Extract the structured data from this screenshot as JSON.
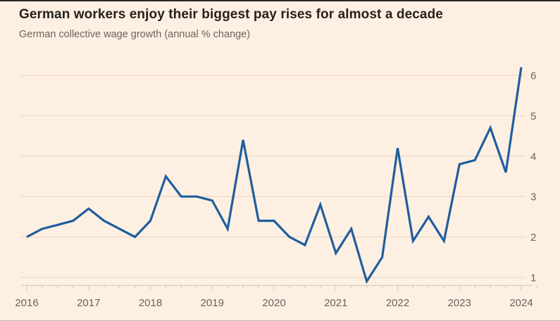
{
  "header": {
    "title": "German workers enjoy their biggest pay rises for almost a decade",
    "subtitle": "German collective wage growth (annual % change)"
  },
  "colors": {
    "background": "#fdf0e3",
    "line": "#1f5e9e",
    "grid": "#eedccc",
    "axis": "#ddcab9",
    "label": "#6d635a",
    "title": "#27211b"
  },
  "chart_data": {
    "type": "line",
    "title": "German workers enjoy their biggest pay rises for almost a decade",
    "subtitle": "German collective wage growth (annual % change)",
    "series_name": "German collective wage growth (annual % change)",
    "frequency": "quarterly",
    "x": [
      2016.0,
      2016.25,
      2016.5,
      2016.75,
      2017.0,
      2017.25,
      2017.5,
      2017.75,
      2018.0,
      2018.25,
      2018.5,
      2018.75,
      2019.0,
      2019.25,
      2019.5,
      2019.75,
      2020.0,
      2020.25,
      2020.5,
      2020.75,
      2021.0,
      2021.25,
      2021.5,
      2021.75,
      2022.0,
      2022.25,
      2022.5,
      2022.75,
      2023.0,
      2023.25,
      2023.5,
      2023.75,
      2024.0
    ],
    "periods": [
      "2016 Q1",
      "2016 Q2",
      "2016 Q3",
      "2016 Q4",
      "2017 Q1",
      "2017 Q2",
      "2017 Q3",
      "2017 Q4",
      "2018 Q1",
      "2018 Q2",
      "2018 Q3",
      "2018 Q4",
      "2019 Q1",
      "2019 Q2",
      "2019 Q3",
      "2019 Q4",
      "2020 Q1",
      "2020 Q2",
      "2020 Q3",
      "2020 Q4",
      "2021 Q1",
      "2021 Q2",
      "2021 Q3",
      "2021 Q4",
      "2022 Q1",
      "2022 Q2",
      "2022 Q3",
      "2022 Q4",
      "2023 Q1",
      "2023 Q2",
      "2023 Q3",
      "2023 Q4",
      "2024 Q1"
    ],
    "values": [
      2.0,
      2.2,
      2.3,
      2.4,
      2.7,
      2.4,
      2.2,
      2.0,
      2.4,
      3.5,
      3.0,
      3.0,
      2.9,
      2.2,
      4.4,
      2.4,
      2.4,
      2.0,
      1.8,
      2.8,
      1.6,
      2.2,
      0.9,
      1.5,
      4.2,
      1.9,
      2.5,
      1.9,
      3.8,
      3.9,
      4.7,
      3.6,
      6.2
    ],
    "x_tick_labels": [
      "2016",
      "2017",
      "2018",
      "2019",
      "2020",
      "2021",
      "2022",
      "2023",
      "2024"
    ],
    "y_ticks": [
      1,
      2,
      3,
      4,
      5,
      6
    ],
    "xlim": [
      2016,
      2024.25
    ],
    "ylim": [
      0.75,
      6.4
    ],
    "grid": "horizontal",
    "y_axis_side": "right",
    "legend": "none"
  }
}
